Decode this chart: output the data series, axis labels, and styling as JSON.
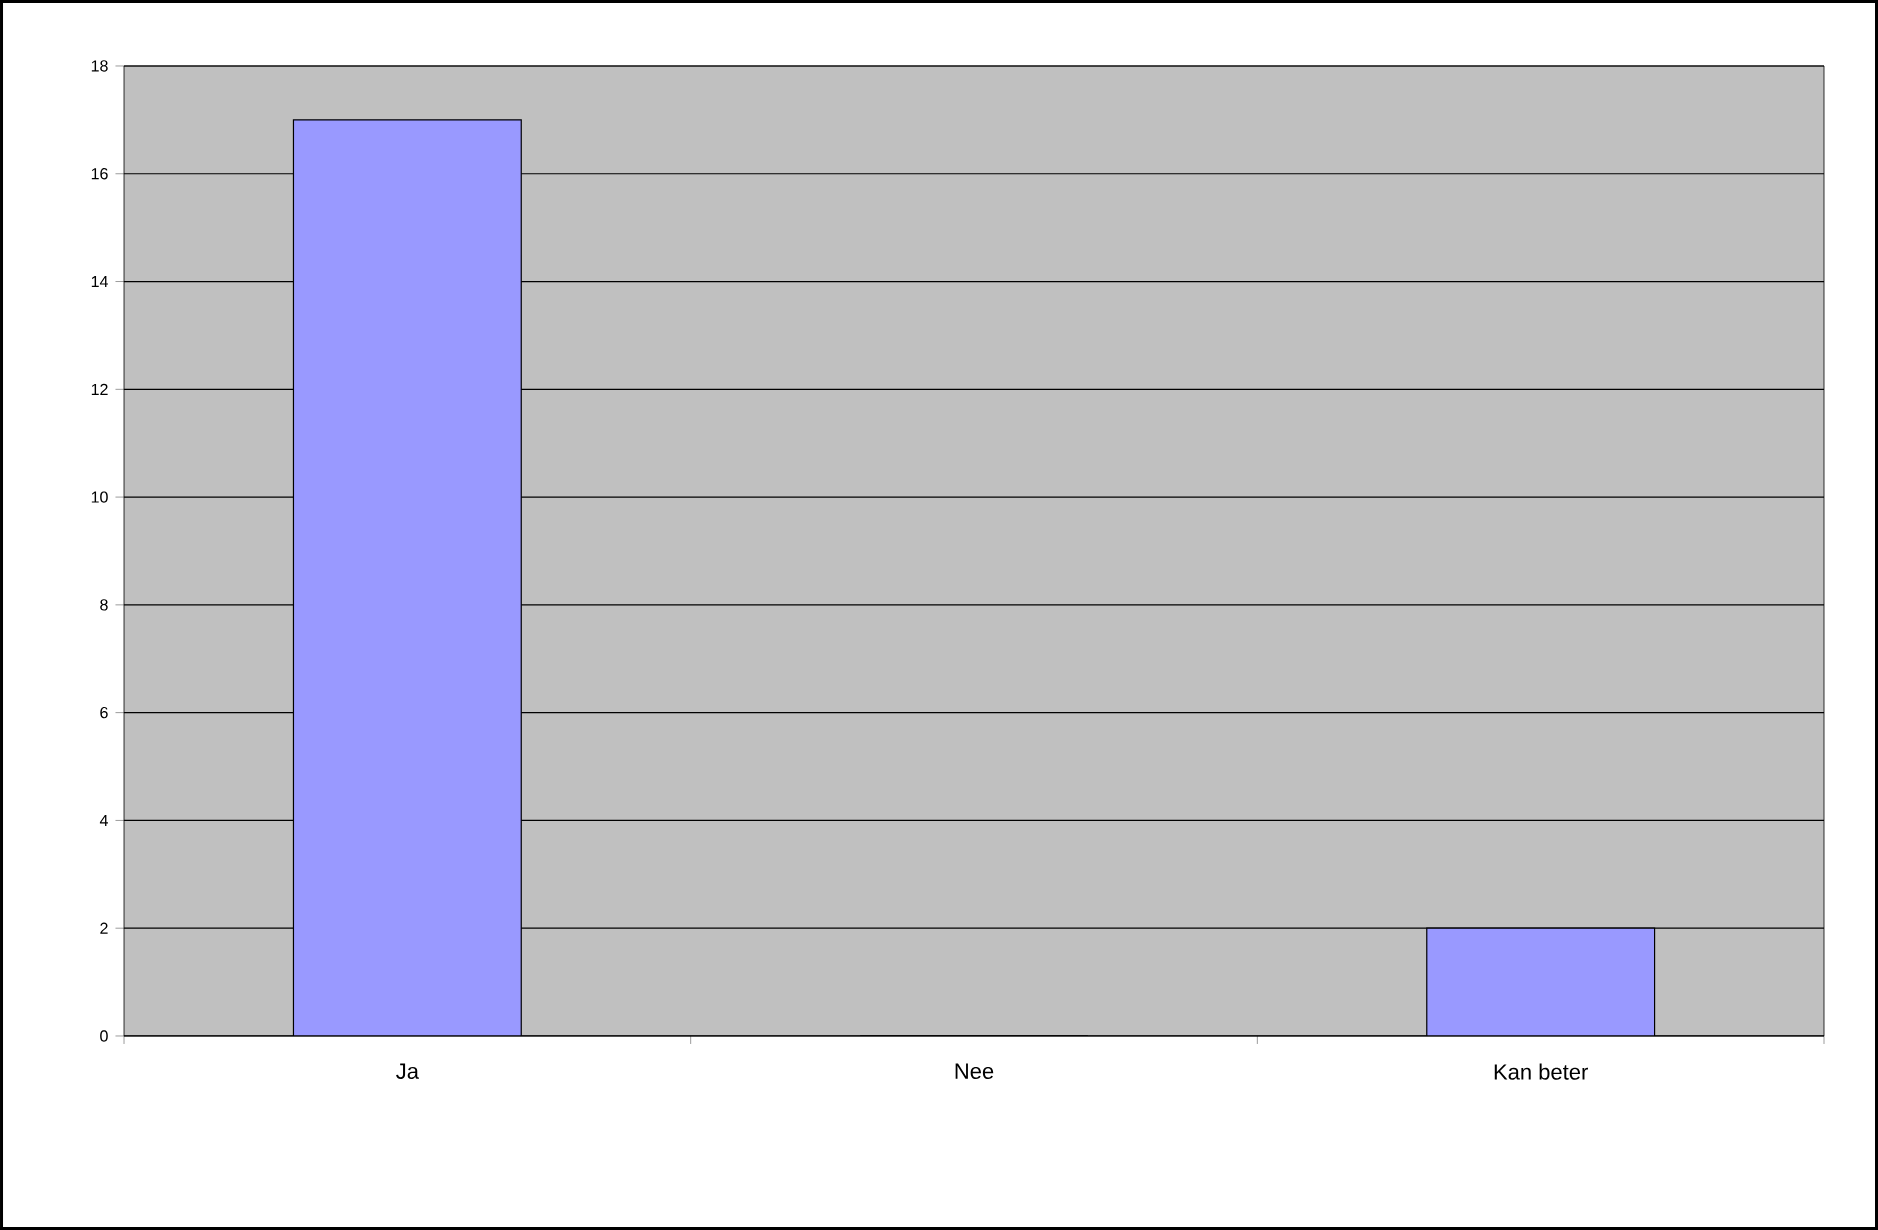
{
  "chart_data": {
    "type": "bar",
    "categories": [
      "Ja",
      "Nee",
      "Kan beter"
    ],
    "values": [
      17,
      0,
      2
    ],
    "color": "#9999ff",
    "ylim": [
      0,
      18
    ],
    "yticks": [
      0,
      2,
      4,
      6,
      8,
      10,
      12,
      14,
      16,
      18
    ],
    "grid": "y"
  }
}
